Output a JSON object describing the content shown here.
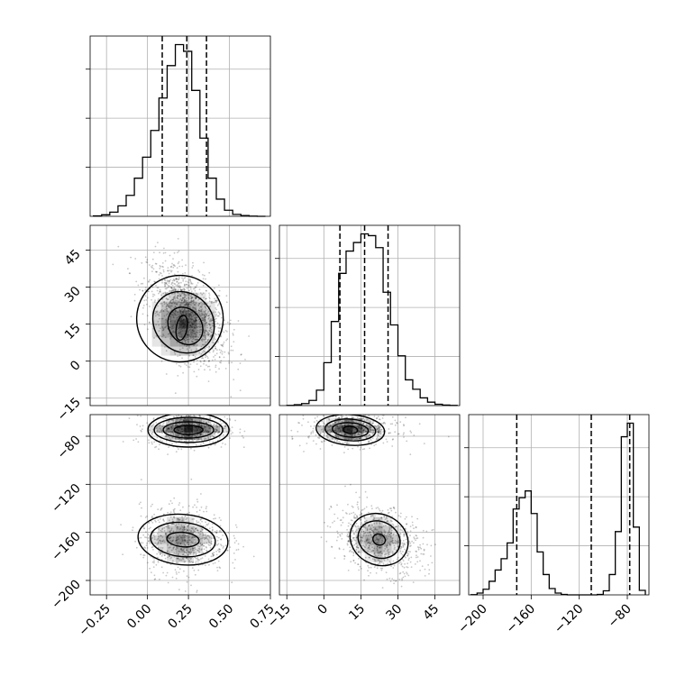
{
  "chart_data": {
    "type": "corner",
    "grid": true,
    "parameters": [
      {
        "range": [
          -0.35,
          0.75
        ],
        "ticks": [
          -0.25,
          0.0,
          0.25,
          0.5,
          0.75
        ],
        "tick_labels": [
          "−0.25",
          "0.00",
          "0.25",
          "0.50",
          "0.75"
        ]
      },
      {
        "range": [
          -18,
          55
        ],
        "ticks": [
          -15,
          0,
          15,
          30,
          45
        ],
        "tick_labels": [
          "−15",
          "0",
          "15",
          "30",
          "45"
        ]
      },
      {
        "range": [
          -212,
          -62
        ],
        "ticks": [
          -200,
          -160,
          -120,
          -80
        ],
        "tick_labels": [
          "−200",
          "−160",
          "−120",
          "−80"
        ]
      }
    ],
    "marginals": [
      {
        "bin_edges": [
          -0.33,
          -0.28,
          -0.23,
          -0.18,
          -0.13,
          -0.08,
          -0.03,
          0.02,
          0.07,
          0.12,
          0.17,
          0.22,
          0.27,
          0.32,
          0.37,
          0.42,
          0.47,
          0.52,
          0.57,
          0.62,
          0.67,
          0.72
        ],
        "counts": [
          2,
          8,
          22,
          55,
          110,
          200,
          310,
          450,
          620,
          790,
          900,
          865,
          660,
          410,
          200,
          90,
          32,
          10,
          4,
          1,
          0
        ],
        "quantiles": [
          0.09,
          0.24,
          0.36
        ]
      },
      {
        "bin_edges": [
          -15,
          -12,
          -9,
          -6,
          -3,
          0,
          3,
          6,
          9,
          12,
          15,
          18,
          21,
          24,
          27,
          30,
          33,
          36,
          39,
          42,
          45,
          48,
          51,
          54
        ],
        "counts": [
          1,
          5,
          12,
          30,
          90,
          250,
          490,
          770,
          900,
          950,
          1000,
          990,
          920,
          660,
          470,
          290,
          150,
          95,
          45,
          20,
          8,
          3,
          1
        ],
        "quantiles": [
          6.5,
          16.5,
          26
        ]
      },
      {
        "bin_edges": [
          -210,
          -205,
          -200,
          -195,
          -190,
          -185,
          -180,
          -175,
          -170,
          -165,
          -160,
          -155,
          -150,
          -145,
          -140,
          -135,
          -130,
          -125,
          -120,
          -115,
          -110,
          -105,
          -100,
          -95,
          -90,
          -85,
          -80,
          -75,
          -70,
          -65
        ],
        "counts": [
          1,
          8,
          25,
          60,
          110,
          160,
          230,
          380,
          430,
          460,
          360,
          190,
          90,
          28,
          8,
          2,
          0,
          0,
          0,
          0,
          0,
          2,
          18,
          90,
          280,
          700,
          760,
          300,
          20
        ],
        "quantiles": [
          -172,
          -110,
          -78
        ]
      }
    ]
  }
}
